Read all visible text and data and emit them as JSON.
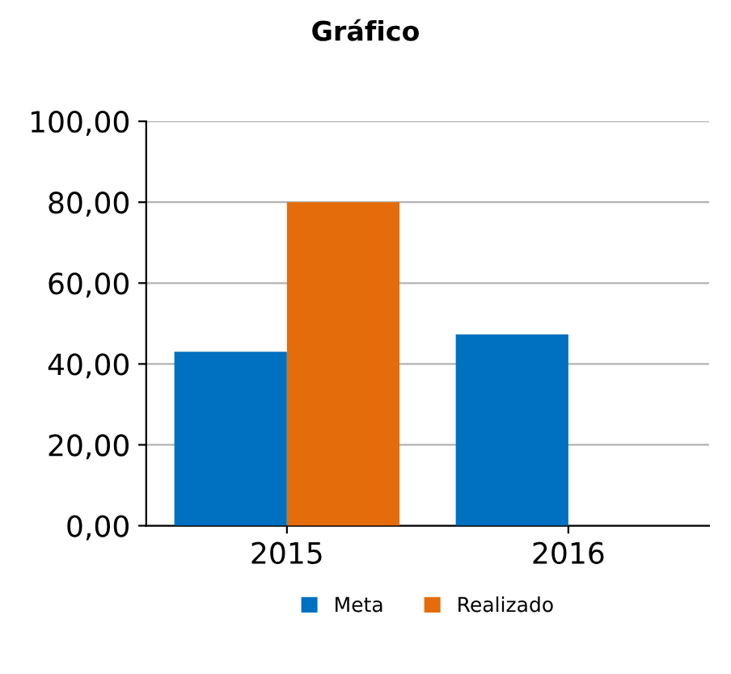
{
  "chart_data": {
    "type": "bar",
    "title": "Gráfico",
    "categories": [
      "2015",
      "2016"
    ],
    "series": [
      {
        "name": "Meta",
        "color": "#0070c0",
        "values": [
          43.0,
          47.3
        ]
      },
      {
        "name": "Realizado",
        "color": "#e46c0a",
        "values": [
          80.0,
          null
        ]
      }
    ],
    "ylim": [
      0,
      100
    ],
    "yticks": [
      {
        "value": 0,
        "label": "0,00"
      },
      {
        "value": 20,
        "label": "20,00"
      },
      {
        "value": 40,
        "label": "40,00"
      },
      {
        "value": 60,
        "label": "60,00"
      },
      {
        "value": 80,
        "label": "80,00"
      },
      {
        "value": 100,
        "label": "100,00"
      }
    ],
    "grid": "y",
    "legend": "bottom"
  }
}
